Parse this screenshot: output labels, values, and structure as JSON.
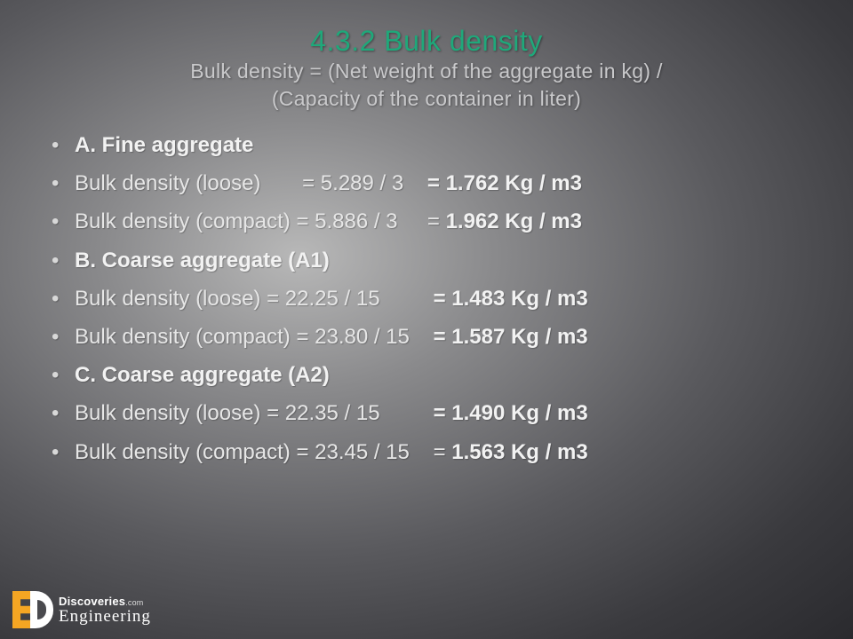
{
  "title": {
    "main": "4.3.2 Bulk density",
    "sub_line1": "Bulk density = (Net weight of the aggregate in kg)  /",
    "sub_line2": "(Capacity of the container in liter)",
    "main_color": "#1fa87a",
    "sub_color": "#c9c9cb",
    "main_fontsize": 32,
    "sub_fontsize": 23
  },
  "bullets": [
    {
      "type": "heading",
      "text": "A. Fine aggregate"
    },
    {
      "type": "calc",
      "label": "Bulk density (loose)",
      "expr": "= 5.289 / 3",
      "result": "= 1.762 Kg / m3",
      "label_pad": "      "
    },
    {
      "type": "calc_wrap",
      "label": "Bulk density (compact)",
      "expr": "= 5.886 / 3",
      "result_prefix": "   = ",
      "result_value": "1.962 Kg / m3"
    },
    {
      "type": "heading",
      "text": "B. Coarse aggregate (A1)"
    },
    {
      "type": "calc",
      "label": "Bulk density (loose)",
      "expr": "= 22.25 / 15",
      "result": "= 1.483 Kg / m3",
      "label_pad": " "
    },
    {
      "type": "calc",
      "label": "Bulk density (compact)",
      "expr": "= 23.80 / 15",
      "result": "= 1.587 Kg / m3",
      "label_pad": " "
    },
    {
      "type": "heading",
      "text": "C. Coarse aggregate (A2)"
    },
    {
      "type": "calc",
      "label": "Bulk density (loose)",
      "expr": "= 22.35  / 15",
      "result": "= 1.490 Kg / m3",
      "label_pad": " "
    },
    {
      "type": "calc_wrap",
      "label": "Bulk density (compact)",
      "expr": "= 23.45 / 15",
      "result_prefix": "   = ",
      "result_value": "1.563 Kg / m3"
    }
  ],
  "text_color": "#e6e6e6",
  "bold_color": "#f2f2f2",
  "bullet_fontsize": 24,
  "background": {
    "type": "radial-gradient",
    "center_color": "#b8b8b8",
    "outer_color": "#2a2a2e"
  },
  "logo": {
    "top_text": "Discoveries",
    "top_suffix": ".com",
    "bottom_text": "Engineering",
    "icon_left_color": "#f5a623",
    "icon_right_color": "#ffffff"
  }
}
